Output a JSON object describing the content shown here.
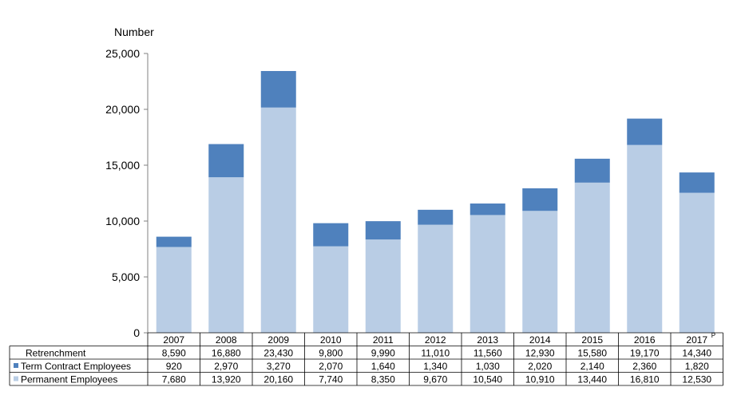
{
  "chart_data": {
    "type": "bar",
    "stacked": true,
    "ylabel": "Number",
    "ylim": [
      0,
      25000
    ],
    "yticks": [
      "0",
      "5,000",
      "10,000",
      "15,000",
      "20,000",
      "25,000"
    ],
    "categories": [
      "2007",
      "2008",
      "2009",
      "2010",
      "2011",
      "2012",
      "2013",
      "2014",
      "2015",
      "2016",
      "2017"
    ],
    "category_superscripts": {
      "2017": "P"
    },
    "series": [
      {
        "name": "Permanent Employees",
        "color": "#b9cde5",
        "values": [
          7680,
          13920,
          20160,
          7740,
          8350,
          9670,
          10540,
          10910,
          13440,
          16810,
          12530
        ],
        "labels": [
          "7,680",
          "13,920",
          "20,160",
          "7,740",
          "8,350",
          "9,670",
          "10,540",
          "10,910",
          "13,440",
          "16,810",
          "12,530"
        ]
      },
      {
        "name": "Term Contract Employees",
        "color": "#4f81bd",
        "values": [
          920,
          2970,
          3270,
          2070,
          1640,
          1340,
          1030,
          2020,
          2140,
          2360,
          1820
        ],
        "labels": [
          "920",
          "2,970",
          "3,270",
          "2,070",
          "1,640",
          "1,340",
          "1,030",
          "2,020",
          "2,140",
          "2,360",
          "1,820"
        ]
      }
    ],
    "table": {
      "total_row_label": "Retrenchment",
      "totals": [
        8590,
        16880,
        23430,
        9800,
        9990,
        11010,
        11560,
        12930,
        15580,
        19170,
        14340
      ],
      "total_labels": [
        "8,590",
        "16,880",
        "23,430",
        "9,800",
        "9,990",
        "11,010",
        "11,560",
        "12,930",
        "15,580",
        "19,170",
        "14,340"
      ]
    },
    "grid": false,
    "legend": "data-table"
  }
}
